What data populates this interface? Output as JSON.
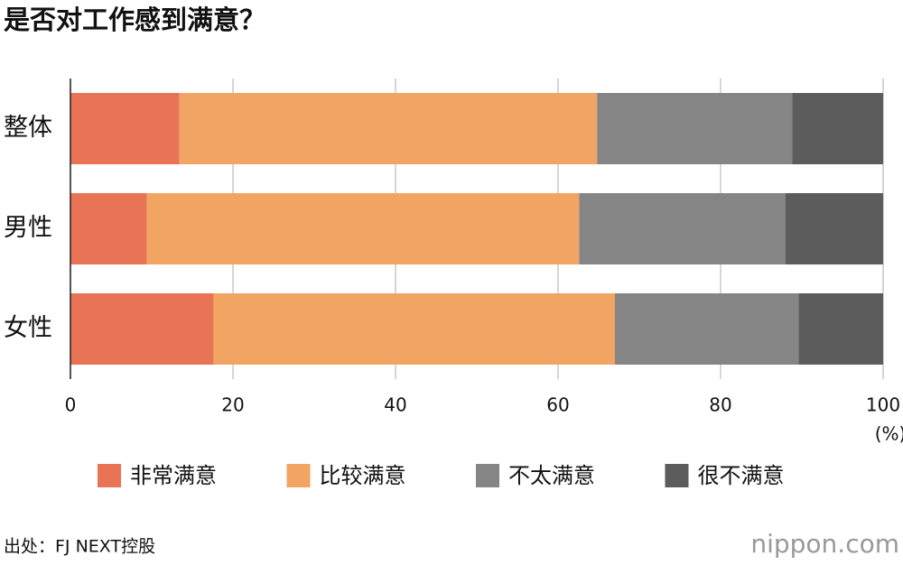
{
  "chart_data": {
    "type": "stacked-bar-horizontal",
    "title": "是否对工作感到满意？",
    "categories": [
      "整体",
      "男性",
      "女性"
    ],
    "series": [
      {
        "name": "非常满意",
        "color": "#e87355",
        "values": [
          13.4,
          9.4,
          17.6
        ]
      },
      {
        "name": "比较满意",
        "color": "#f2a463",
        "values": [
          51.4,
          53.2,
          49.4
        ]
      },
      {
        "name": "不太满意",
        "color": "#858585",
        "values": [
          24.0,
          25.4,
          22.6
        ]
      },
      {
        "name": "很不满意",
        "color": "#5c5c5c",
        "values": [
          11.2,
          12.0,
          10.4
        ]
      }
    ],
    "xlim": [
      0,
      100
    ],
    "xticks": [
      0,
      20,
      40,
      60,
      80,
      100
    ],
    "xlabel": "(%)",
    "grid": true,
    "source": "出处：FJ NEXT控股",
    "logo": "nippon.com"
  }
}
